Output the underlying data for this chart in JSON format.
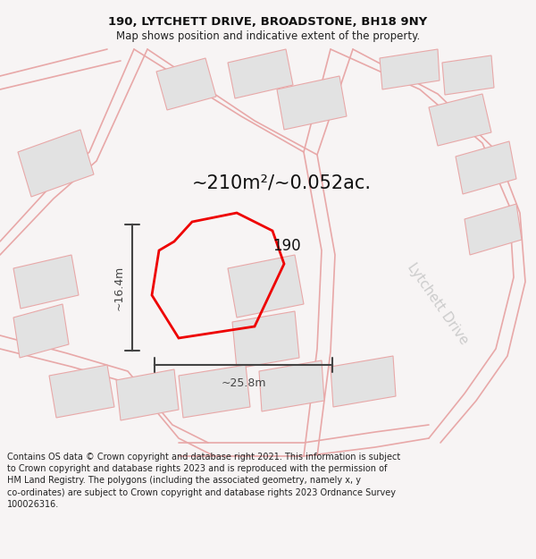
{
  "title_line1": "190, LYTCHETT DRIVE, BROADSTONE, BH18 9NY",
  "title_line2": "Map shows position and indicative extent of the property.",
  "area_text": "~210m²/~0.052ac.",
  "label_190": "190",
  "label_lytchett": "Lytchett Drive",
  "dim_width": "~25.8m",
  "dim_height": "~16.4m",
  "footer_text": "Contains OS data © Crown copyright and database right 2021. This information is subject\nto Crown copyright and database rights 2023 and is reproduced with the permission of\nHM Land Registry. The polygons (including the associated geometry, namely x, y\nco-ordinates) are subject to Crown copyright and database rights 2023 Ordnance Survey\n100026316.",
  "bg_color": "#f7f4f4",
  "map_bg": "#f7f4f4",
  "plot_color": "#ee0000",
  "building_fill": "#e2e2e2",
  "building_edge": "#e8a8a8",
  "road_color": "#e8a8a8",
  "dim_color": "#444444",
  "title_fontsize": 9.5,
  "subtitle_fontsize": 8.5,
  "area_fontsize": 15,
  "label_fontsize": 12,
  "road_fontsize": 11,
  "footer_fontsize": 7
}
